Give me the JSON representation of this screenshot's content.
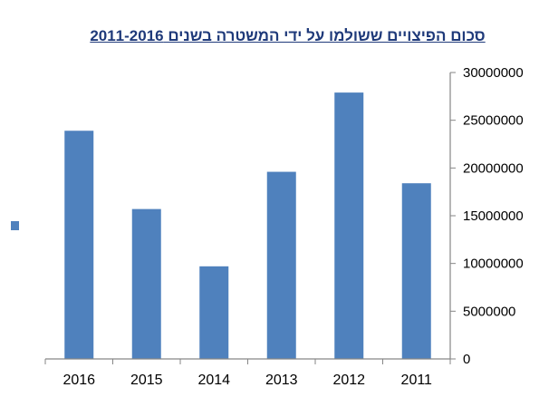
{
  "chart_data": {
    "type": "bar",
    "title": "סכום הפיצויים ששולמו על ידי המשטרה בשנים 2011-2016",
    "categories": [
      "2016",
      "2015",
      "2014",
      "2013",
      "2012",
      "2011"
    ],
    "values": [
      23900000,
      15700000,
      9700000,
      19600000,
      27900000,
      18400000
    ],
    "ylim": [
      0,
      30000000
    ],
    "yticks": [
      "0",
      "5000000",
      "10000000",
      "15000000",
      "20000000",
      "25000000",
      "30000000"
    ],
    "y_axis_side": "right",
    "grid": false,
    "legend": "left",
    "bar_color": "#4f81bd"
  }
}
